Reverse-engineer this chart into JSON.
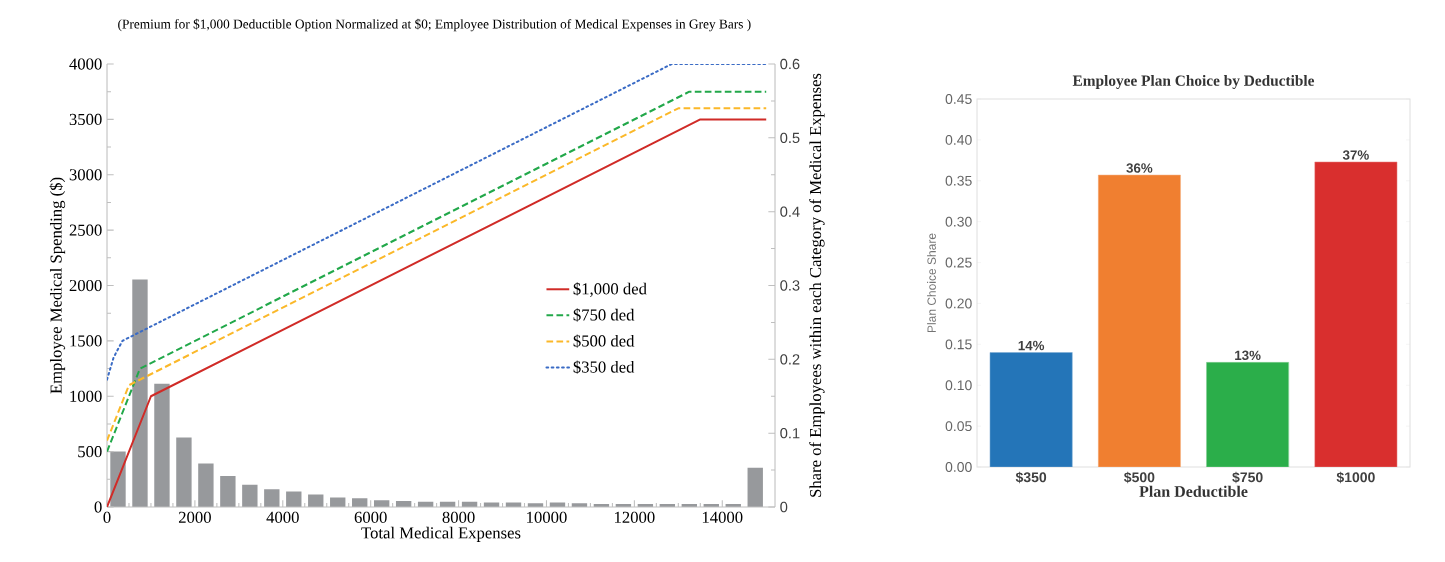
{
  "chart_data": [
    {
      "type": "line",
      "title": "(Premium for $1,000 Deductible Option Normalized at $0; Employee Distribution of Medical Expenses in Grey Bars )",
      "xlabel": "Total Medical Expenses",
      "ylabel": "Employee Medical Spending ($)",
      "y2label": "Share of Employees within each Category of Medical Expenses",
      "xlim": [
        0,
        15200
      ],
      "xticks": [
        0,
        2000,
        4000,
        6000,
        8000,
        10000,
        12000,
        14000
      ],
      "ylim": [
        0,
        4000
      ],
      "yticks": [
        0,
        500,
        1000,
        1500,
        2000,
        2500,
        3000,
        3500,
        4000
      ],
      "y2lim": [
        0,
        0.6
      ],
      "y2ticks": [
        0,
        0.1,
        0.2,
        0.3,
        0.4,
        0.5,
        0.6
      ],
      "legend": "right",
      "series": [
        {
          "type": "bar",
          "axis": "y2",
          "color": "#97999c",
          "x": [
            250,
            750,
            1250,
            1750,
            2250,
            2750,
            3250,
            3750,
            4250,
            4750,
            5250,
            5750,
            6250,
            6750,
            7250,
            7750,
            8250,
            8750,
            9250,
            9750,
            10250,
            10750,
            11250,
            11750,
            12250,
            12750,
            13250,
            13750,
            14250,
            14750
          ],
          "values": [
            0.075,
            0.308,
            0.167,
            0.094,
            0.059,
            0.042,
            0.03,
            0.024,
            0.021,
            0.017,
            0.013,
            0.012,
            0.009,
            0.008,
            0.007,
            0.007,
            0.007,
            0.006,
            0.006,
            0.005,
            0.006,
            0.005,
            0.004,
            0.004,
            0.004,
            0.004,
            0.004,
            0.004,
            0.004,
            0.053
          ]
        },
        {
          "name": "$1,000 ded",
          "color": "#d02b27",
          "line_style": "solid",
          "x": [
            0,
            1000,
            13500,
            15000
          ],
          "values": [
            0,
            1000,
            3500,
            3500
          ]
        },
        {
          "name": "$750 ded",
          "color": "#22a84a",
          "line_style": "dashed",
          "x": [
            0,
            750,
            13250,
            15000
          ],
          "values": [
            500,
            1250,
            3750,
            3750
          ]
        },
        {
          "name": "$500 ded",
          "color": "#fbb829",
          "line_style": "dashed",
          "x": [
            0,
            500,
            13000,
            15000
          ],
          "values": [
            600,
            1100,
            3600,
            3600
          ]
        },
        {
          "name": "$350 ded",
          "color": "#3a6bc5",
          "line_style": "dotted",
          "x": [
            0,
            150,
            350,
            12850,
            15000
          ],
          "values": [
            1150,
            1350,
            1500,
            4000,
            4000
          ]
        }
      ]
    },
    {
      "type": "bar",
      "title": "Employee Plan Choice by Deductible",
      "xlabel": "Plan Deductible",
      "ylabel": "Plan Choice Share",
      "categories": [
        "$350",
        "$500",
        "$750",
        "$1000"
      ],
      "values": [
        0.14,
        0.357,
        0.128,
        0.373
      ],
      "colors": [
        "#2475b8",
        "#f07f30",
        "#2bae4a",
        "#d92f2e"
      ],
      "value_labels": [
        "14%",
        "36%",
        "13%",
        "37%"
      ],
      "ylim": [
        0,
        0.45
      ],
      "yticks": [
        {
          "value": 0,
          "label": "0.00"
        },
        {
          "value": 0.05,
          "label": "0.05"
        },
        {
          "value": 0.1,
          "label": "0.10"
        },
        {
          "value": 0.15,
          "label": "0.15"
        },
        {
          "value": 0.2,
          "label": "0.20"
        },
        {
          "value": 0.25,
          "label": "0.25"
        },
        {
          "value": 0.3,
          "label": "0.30"
        },
        {
          "value": 0.35,
          "label": "0.35"
        },
        {
          "value": 0.4,
          "label": "0.40"
        },
        {
          "value": 0.45,
          "label": "0.45"
        }
      ]
    }
  ]
}
